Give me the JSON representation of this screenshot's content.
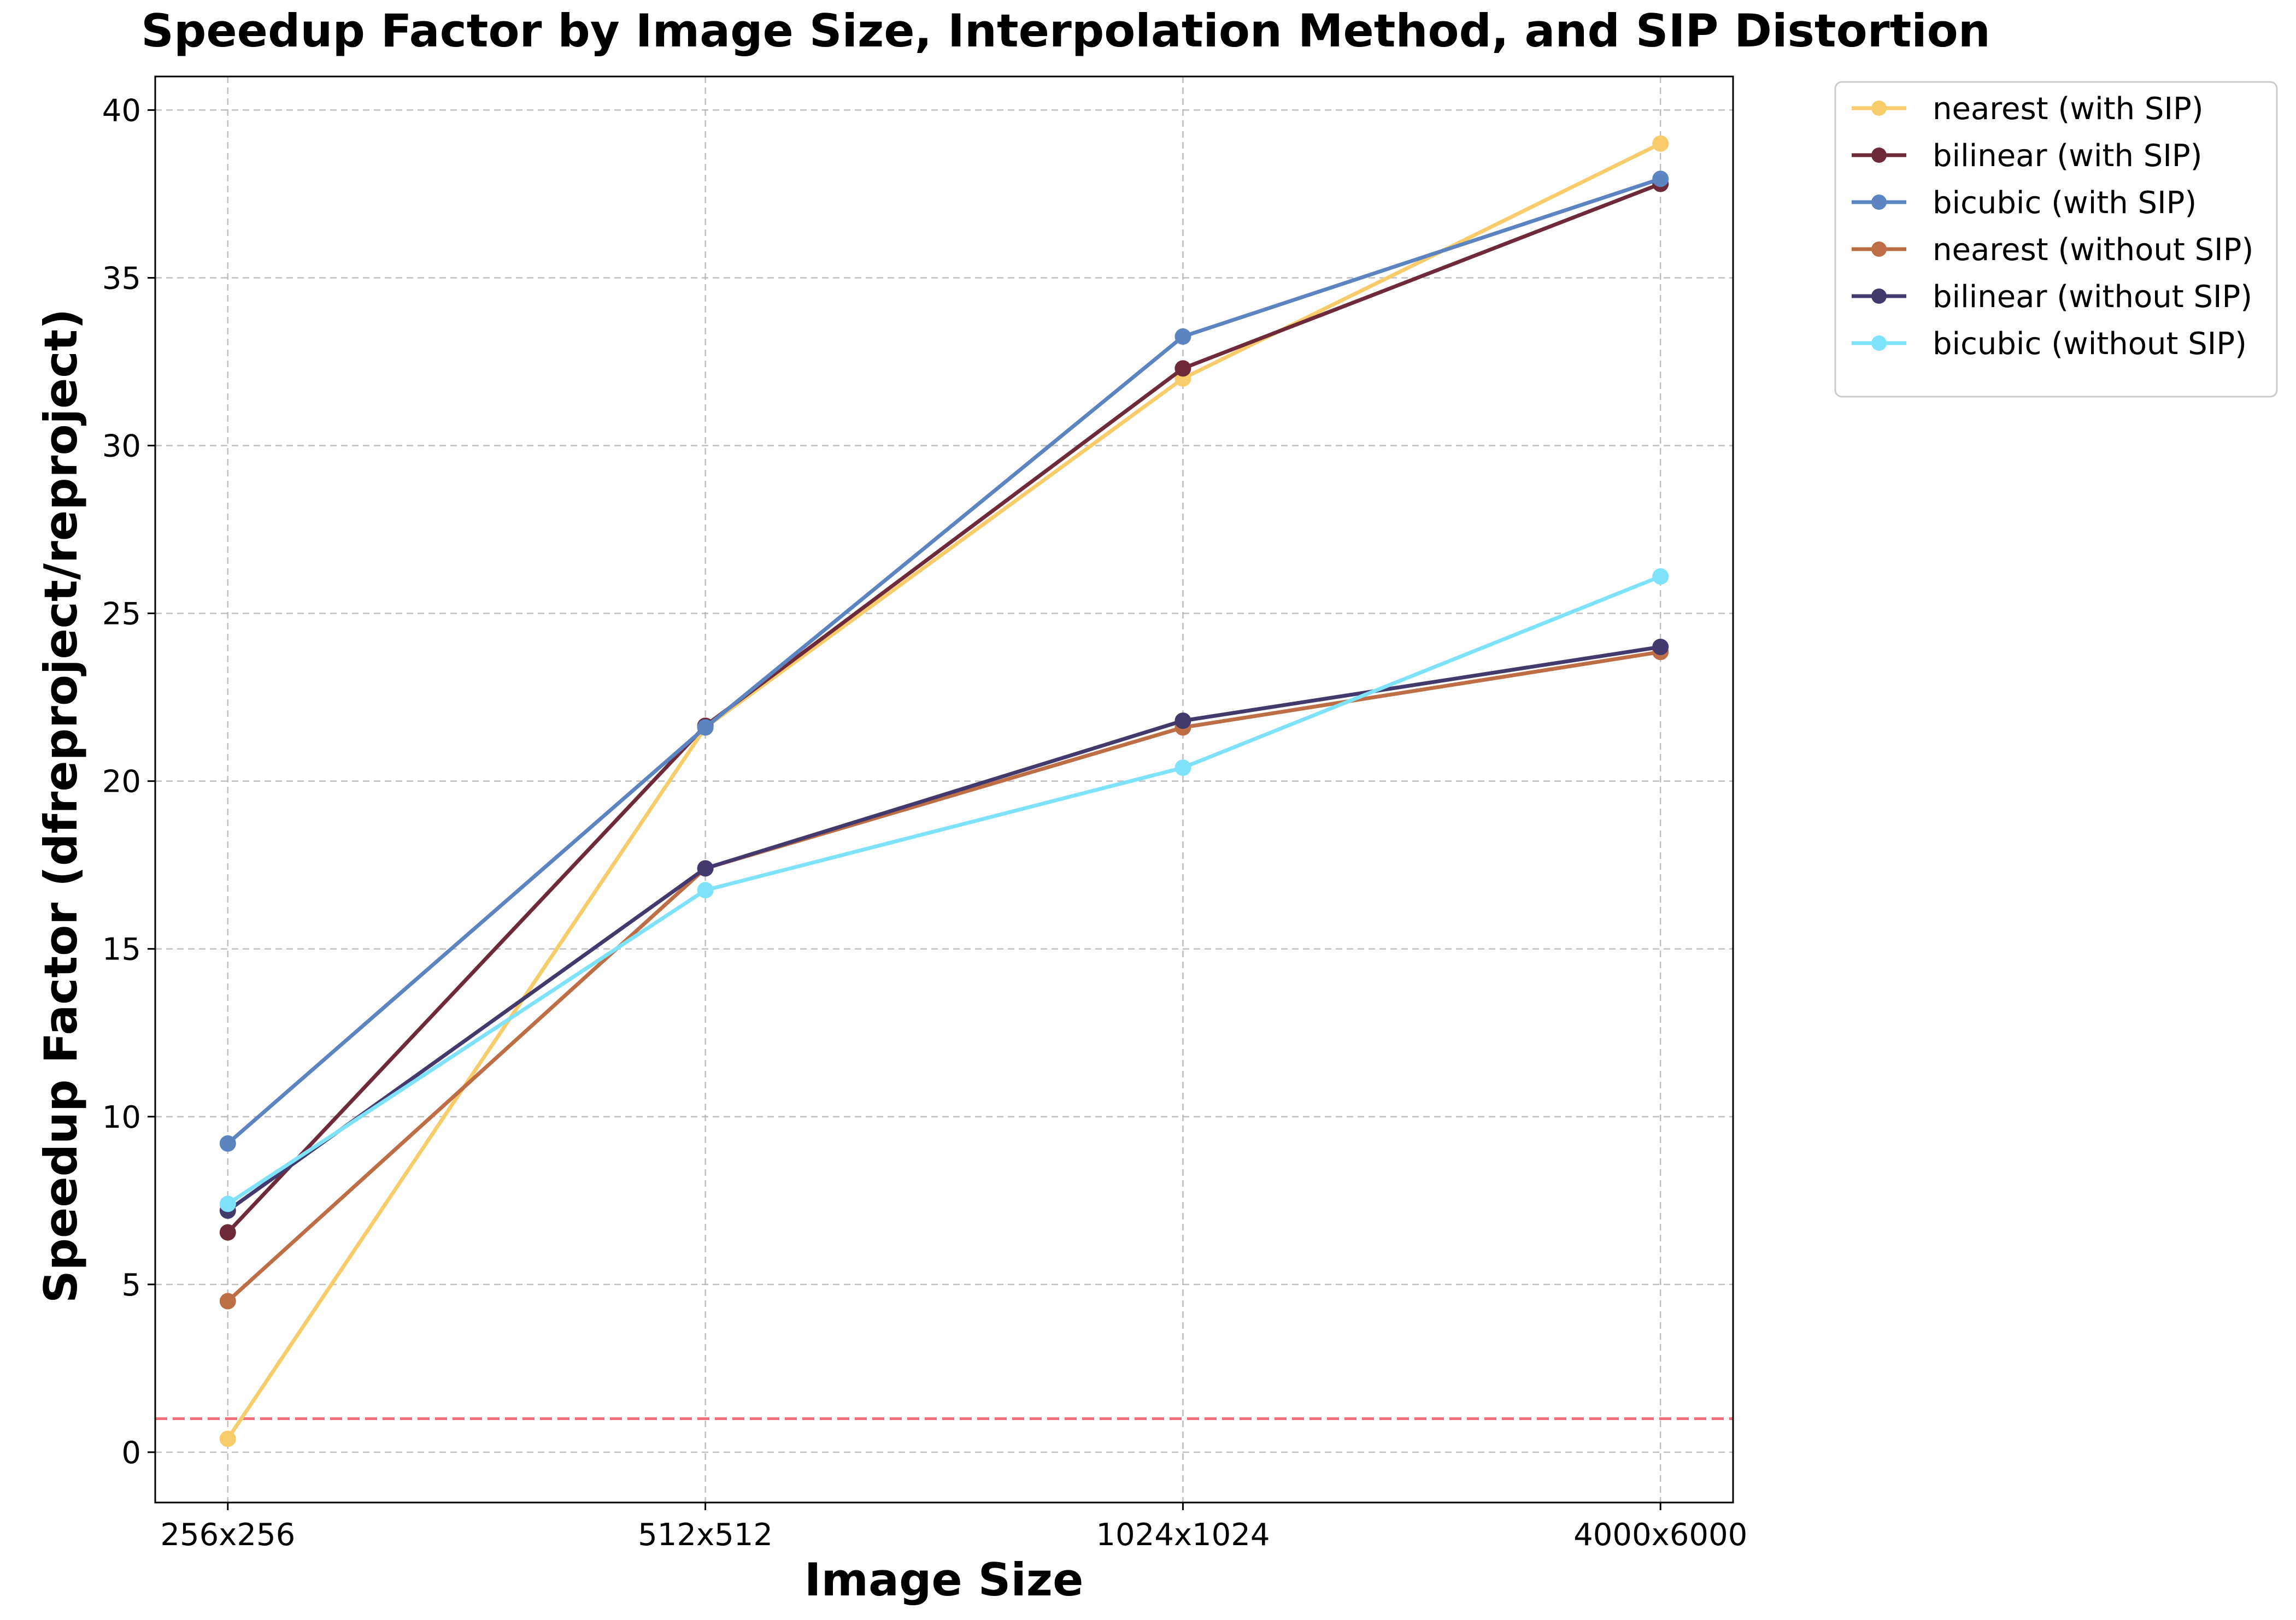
{
  "chart_data": {
    "type": "line",
    "title": "Speedup Factor by Image Size, Interpolation Method, and SIP Distortion",
    "xlabel": "Image Size",
    "ylabel": "Speedup Factor (dfreproject/reproject)",
    "categories": [
      "256x256",
      "512x512",
      "1024x1024",
      "4000x6000"
    ],
    "ylim": [
      -1.5,
      41.0
    ],
    "yticks": [
      0,
      5,
      10,
      15,
      20,
      25,
      30,
      35,
      40
    ],
    "grid": true,
    "legend_position": "outside-top-right",
    "reference_line": {
      "y": 1.0,
      "color": "#f0707a",
      "style": "dashed"
    },
    "series": [
      {
        "name": "nearest (with SIP)",
        "color": "#f8cc6b",
        "values": [
          0.4,
          21.6,
          32.0,
          39.0
        ]
      },
      {
        "name": "bilinear (with SIP)",
        "color": "#6e2a38",
        "values": [
          6.55,
          21.65,
          32.3,
          37.8
        ]
      },
      {
        "name": "bicubic (with SIP)",
        "color": "#5b84c0",
        "values": [
          9.2,
          21.6,
          33.25,
          37.95
        ]
      },
      {
        "name": "nearest (without SIP)",
        "color": "#bd6e45",
        "values": [
          4.5,
          17.4,
          21.6,
          23.85
        ]
      },
      {
        "name": "bilinear (without SIP)",
        "color": "#44396d",
        "values": [
          7.2,
          17.4,
          21.8,
          24.0
        ]
      },
      {
        "name": "bicubic (without SIP)",
        "color": "#7ee2fb",
        "values": [
          7.4,
          16.75,
          20.4,
          26.1
        ]
      }
    ]
  }
}
